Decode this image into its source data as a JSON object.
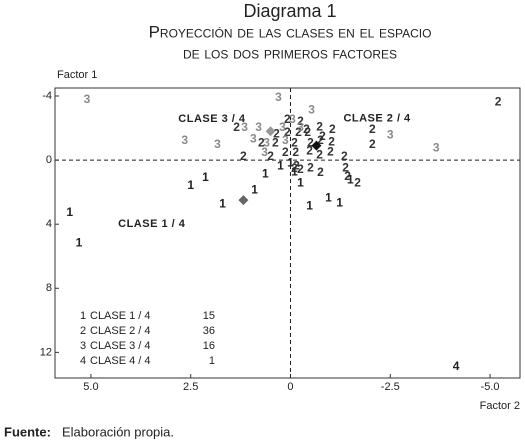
{
  "chart_data": {
    "type": "scatter",
    "title": "Diagrama 1",
    "subtitle": [
      "Proyección de las clases en el espacio",
      "de los dos primeros factores"
    ],
    "x_label": "Factor 2",
    "y_label": "Factor 1",
    "xlim": [
      5.9,
      -5.75
    ],
    "ylim": [
      -4.5,
      13.6
    ],
    "xticks": [
      {
        "value": 5,
        "label": "5.0"
      },
      2.5,
      0,
      -2.5,
      {
        "value": -5,
        "label": "-5.0"
      }
    ],
    "yticks": [
      -4,
      0,
      4,
      8,
      12
    ],
    "series": [
      {
        "name": "CLASE 1 / 4",
        "marker": "1",
        "count": 15,
        "color": "#222222",
        "x": [
          5.3,
          5.53,
          2.5,
          2.13,
          1.7,
          0.9,
          0.63,
          -0.25,
          -0.48,
          -0.95,
          -1.23,
          -1.5,
          0,
          -0.1,
          0.25
        ],
        "y": [
          5.2,
          3.3,
          1.6,
          1.1,
          2.75,
          1.9,
          0.9,
          1.45,
          2.9,
          2.4,
          2.7,
          1.25,
          0.2,
          0.75,
          0.4
        ]
      },
      {
        "name": "CLASE 2 / 4",
        "marker": "2",
        "count": 36,
        "color": "#333333",
        "x": [
          -5.2,
          -2.05,
          -2.05,
          1.35,
          1.18,
          -0.73,
          -1.05,
          -0.43,
          -0.2,
          0.08,
          0.35,
          0.73,
          0.38,
          -0.1,
          -0.5,
          -0.75,
          -1.03,
          -0.48,
          -0.73,
          -1.0,
          -1.35,
          -0.13,
          0.13,
          0.5,
          -0.15,
          -0.1,
          -0.25,
          -0.5,
          -1.38,
          -1.43,
          -1.68,
          -0.75,
          -0.4,
          -0.8,
          0.08,
          -0.25
        ],
        "y": [
          -3.6,
          -1.9,
          -0.95,
          -2,
          -0.2,
          -2.05,
          -1.9,
          -1.7,
          -1.7,
          -1.7,
          -1.6,
          -1.05,
          -1.05,
          -1.05,
          -1.05,
          -1.2,
          -1.1,
          -0.55,
          -0.3,
          -0.5,
          -0.2,
          -0.45,
          -0.45,
          -0.2,
          0.4,
          0.55,
          0.6,
          0.5,
          0.5,
          1.05,
          1.45,
          0.8,
          -1.9,
          -1.45,
          -2.5,
          -2.4
        ]
      },
      {
        "name": "CLASE 3 / 4",
        "marker": "3",
        "count": 16,
        "color": "#8a8a8a",
        "x": [
          5.1,
          0.3,
          -0.53,
          -0.05,
          1.15,
          2.65,
          1.83,
          0.8,
          0.93,
          0.65,
          -2.5,
          -3.65,
          0.2,
          -0.25,
          0.13,
          0.6
        ],
        "y": [
          -3.75,
          -3.9,
          -3.1,
          -2.5,
          -2,
          -1.2,
          -0.95,
          -2,
          -1.3,
          -0.45,
          -1.55,
          -0.75,
          -2,
          -2,
          -1.2,
          -1.05
        ]
      },
      {
        "name": "CLASE 4 / 4",
        "marker": "4",
        "count": 1,
        "color": "#222222",
        "x": [
          -4.15
        ],
        "y": [
          12.9
        ]
      }
    ],
    "centroids": [
      {
        "label": "CLASE 1 / 4",
        "x": 1.18,
        "y": 2.5,
        "color": "#666666"
      },
      {
        "label": "CLASE 2 / 4",
        "x": -0.65,
        "y": -0.9,
        "color": "#111111"
      },
      {
        "label": "CLASE 3 / 4",
        "x": 0.5,
        "y": -1.8,
        "color": "#999999"
      }
    ],
    "source_label": "Fuente:",
    "source": "Elaboración propia."
  }
}
